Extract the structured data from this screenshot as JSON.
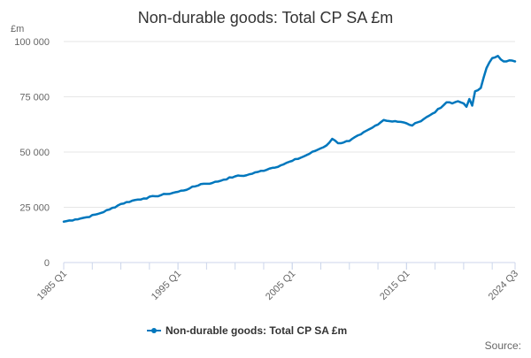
{
  "chart_data": {
    "type": "line",
    "title": "Non-durable goods: Total CP SA £m",
    "ylabel": "£m",
    "ylim": [
      0,
      100000
    ],
    "yticks": [
      {
        "value": 0,
        "label": "0"
      },
      {
        "value": 25000,
        "label": "25 000"
      },
      {
        "value": 50000,
        "label": "50 000"
      },
      {
        "value": 75000,
        "label": "75 000"
      },
      {
        "value": 100000,
        "label": "100 000"
      }
    ],
    "xrange": [
      "1985 Q1",
      "2024 Q3"
    ],
    "xticks": [
      "1985 Q1",
      "1995 Q1",
      "2005 Q1",
      "2015 Q1",
      "2024 Q3"
    ],
    "grid": true,
    "legend_position": "bottom",
    "series": [
      {
        "name": "Non-durable goods: Total CP SA £m",
        "color": "#0077bd",
        "points": [
          [
            "1985 Q1",
            18500
          ],
          [
            "1986 Q1",
            19500
          ],
          [
            "1987 Q1",
            20500
          ],
          [
            "1988 Q1",
            22000
          ],
          [
            "1989 Q1",
            24000
          ],
          [
            "1990 Q1",
            26500
          ],
          [
            "1991 Q1",
            28000
          ],
          [
            "1992 Q1",
            29000
          ],
          [
            "1993 Q1",
            30000
          ],
          [
            "1994 Q1",
            31000
          ],
          [
            "1995 Q1",
            32000
          ],
          [
            "1996 Q1",
            33500
          ],
          [
            "1997 Q1",
            35500
          ],
          [
            "1998 Q1",
            36000
          ],
          [
            "1999 Q1",
            37500
          ],
          [
            "2000 Q1",
            39000
          ],
          [
            "2001 Q1",
            39500
          ],
          [
            "2002 Q1",
            41000
          ],
          [
            "2003 Q1",
            42500
          ],
          [
            "2004 Q1",
            44000
          ],
          [
            "2005 Q1",
            46000
          ],
          [
            "2006 Q1",
            48000
          ],
          [
            "2007 Q1",
            50500
          ],
          [
            "2008 Q1",
            53000
          ],
          [
            "2008 Q3",
            56000
          ],
          [
            "2009 Q1",
            54000
          ],
          [
            "2010 Q1",
            55000
          ],
          [
            "2011 Q1",
            58000
          ],
          [
            "2012 Q1",
            61000
          ],
          [
            "2013 Q1",
            64500
          ],
          [
            "2013 Q3",
            64000
          ],
          [
            "2014 Q1",
            64000
          ],
          [
            "2015 Q1",
            63000
          ],
          [
            "2015 Q3",
            62000
          ],
          [
            "2016 Q1",
            63500
          ],
          [
            "2017 Q1",
            66500
          ],
          [
            "2018 Q1",
            70000
          ],
          [
            "2018 Q3",
            72500
          ],
          [
            "2019 Q1",
            72000
          ],
          [
            "2019 Q3",
            73000
          ],
          [
            "2020 Q1",
            72000
          ],
          [
            "2020 Q2",
            70500
          ],
          [
            "2020 Q3",
            74000
          ],
          [
            "2020 Q4",
            71000
          ],
          [
            "2021 Q1",
            77500
          ],
          [
            "2021 Q3",
            79000
          ],
          [
            "2022 Q1",
            88000
          ],
          [
            "2022 Q3",
            92500
          ],
          [
            "2023 Q1",
            93500
          ],
          [
            "2023 Q3",
            91000
          ],
          [
            "2024 Q1",
            91500
          ],
          [
            "2024 Q3",
            91000
          ]
        ]
      }
    ]
  },
  "source_label": "Source:"
}
